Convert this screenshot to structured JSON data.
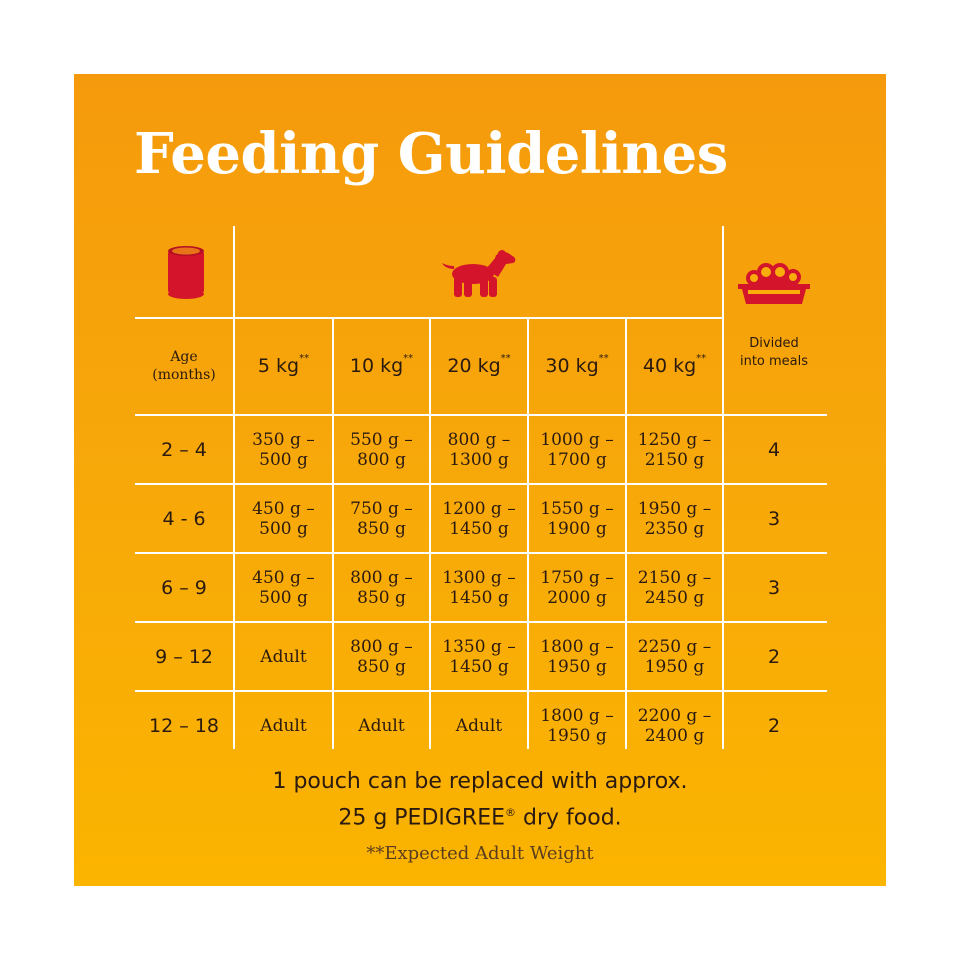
{
  "title": "Feeding Guidelines",
  "colors": {
    "background": "#f7a70a",
    "icon_red": "#d3142a",
    "title": "#ffffff"
  },
  "icons": {
    "can": "pouch-can-icon",
    "dog": "puppy-icon",
    "bowl": "food-bowl-icon"
  },
  "table": {
    "age_header": [
      "Age",
      "(months)"
    ],
    "weights": [
      "5 kg",
      "10 kg",
      "20 kg",
      "30 kg",
      "40 kg"
    ],
    "weight_mark": "**",
    "meals_header": [
      "Divided",
      "into meals"
    ],
    "rows": [
      {
        "age": "2 – 4",
        "amounts": [
          [
            "350 g –",
            "500 g"
          ],
          [
            "550 g –",
            "800 g"
          ],
          [
            "800 g –",
            "1300 g"
          ],
          [
            "1000 g –",
            "1700 g"
          ],
          [
            "1250 g –",
            "2150 g"
          ]
        ],
        "meals": "4"
      },
      {
        "age": "4 - 6",
        "amounts": [
          [
            "450 g –",
            "500 g"
          ],
          [
            "750 g –",
            "850 g"
          ],
          [
            "1200 g –",
            "1450 g"
          ],
          [
            "1550 g –",
            "1900 g"
          ],
          [
            "1950 g –",
            "2350 g"
          ]
        ],
        "meals": "3"
      },
      {
        "age": "6 – 9",
        "amounts": [
          [
            "450 g –",
            "500 g"
          ],
          [
            "800 g –",
            "850 g"
          ],
          [
            "1300 g –",
            "1450 g"
          ],
          [
            "1750 g –",
            "2000 g"
          ],
          [
            "2150 g –",
            "2450 g"
          ]
        ],
        "meals": "3"
      },
      {
        "age": "9 – 12",
        "amounts": [
          [
            "Adult"
          ],
          [
            "800 g –",
            "850 g"
          ],
          [
            "1350 g –",
            "1450 g"
          ],
          [
            "1800 g –",
            "1950 g"
          ],
          [
            "2250 g –",
            "1950 g"
          ]
        ],
        "meals": "2"
      },
      {
        "age": "12 – 18",
        "amounts": [
          [
            "Adult"
          ],
          [
            "Adult"
          ],
          [
            "Adult"
          ],
          [
            "1800 g –",
            "1950 g"
          ],
          [
            "2200 g –",
            "2400 g"
          ]
        ],
        "meals": "2"
      }
    ]
  },
  "footer": {
    "line1": "1 pouch can be replaced with approx.",
    "line2_pre": "25 g PEDIGREE",
    "line2_mark": "®",
    "line2_post": " dry food.",
    "note": "**Expected Adult Weight"
  }
}
